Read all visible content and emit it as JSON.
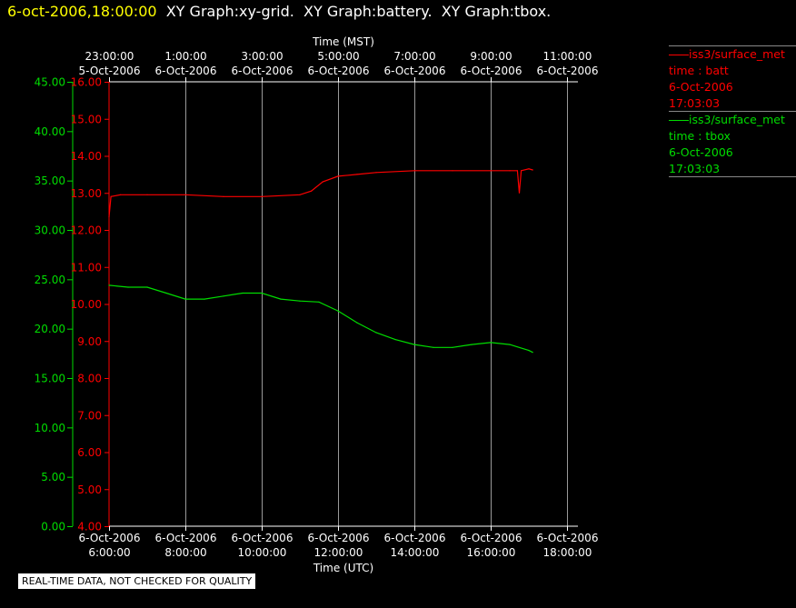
{
  "header": {
    "timestamp": "6-oct-2006,18:00:00",
    "graph_titles": "XY Graph:xy-grid.  XY Graph:battery.  XY Graph:tbox."
  },
  "footer": {
    "notice": "REAL-TIME DATA, NOT CHECKED FOR QUALITY"
  },
  "legend": [
    {
      "line1": "iss3/surface_met",
      "line2": "time : batt",
      "line3": "6-Oct-2006",
      "line4": "17:03:03",
      "color": "#ff0000"
    },
    {
      "line1": "iss3/surface_met",
      "line2": "time : tbox",
      "line3": "6-Oct-2006",
      "line4": "17:03:03",
      "color": "#00dd00"
    }
  ],
  "chart_data": {
    "type": "line",
    "xlabel": "Time (UTC)",
    "x2label": "Time (MST)",
    "xlim": [
      6,
      18
    ],
    "x_ticks_utc": [
      {
        "date": "6-Oct-2006",
        "time": "6:00:00"
      },
      {
        "date": "6-Oct-2006",
        "time": "8:00:00"
      },
      {
        "date": "6-Oct-2006",
        "time": "10:00:00"
      },
      {
        "date": "6-Oct-2006",
        "time": "12:00:00"
      },
      {
        "date": "6-Oct-2006",
        "time": "14:00:00"
      },
      {
        "date": "6-Oct-2006",
        "time": "16:00:00"
      },
      {
        "date": "6-Oct-2006",
        "time": "18:00:00"
      }
    ],
    "x_ticks_mst": [
      {
        "time": "23:00:00",
        "date": "5-Oct-2006"
      },
      {
        "time": "1:00:00",
        "date": "6-Oct-2006"
      },
      {
        "time": "3:00:00",
        "date": "6-Oct-2006"
      },
      {
        "time": "5:00:00",
        "date": "6-Oct-2006"
      },
      {
        "time": "7:00:00",
        "date": "6-Oct-2006"
      },
      {
        "time": "9:00:00",
        "date": "6-Oct-2006"
      },
      {
        "time": "11:00:00",
        "date": "6-Oct-2006"
      }
    ],
    "y_left": {
      "ylim": [
        0,
        45
      ],
      "ticks": [
        "0.00",
        "5.00",
        "10.00",
        "15.00",
        "20.00",
        "25.00",
        "30.00",
        "35.00",
        "40.00",
        "45.00"
      ],
      "color": "#00dd00"
    },
    "y_inner": {
      "ylim": [
        4,
        16
      ],
      "ticks": [
        "4.00",
        "5.00",
        "6.00",
        "7.00",
        "8.00",
        "9.00",
        "10.00",
        "11.00",
        "12.00",
        "13.00",
        "14.00",
        "15.00",
        "16.00"
      ],
      "color": "#ff0000"
    },
    "grid": "vertical",
    "series": [
      {
        "name": "time : batt",
        "axis": "inner",
        "color": "#ff0000",
        "x": [
          6.0,
          6.05,
          6.3,
          7.0,
          8.0,
          9.0,
          10.0,
          11.0,
          11.3,
          11.6,
          12.0,
          12.5,
          13.0,
          14.0,
          15.0,
          16.0,
          16.5,
          16.7,
          16.75,
          16.8,
          17.0,
          17.1
        ],
        "y": [
          12.35,
          12.9,
          12.95,
          12.95,
          12.95,
          12.9,
          12.9,
          12.95,
          13.05,
          13.3,
          13.45,
          13.5,
          13.55,
          13.6,
          13.6,
          13.6,
          13.6,
          13.6,
          13.0,
          13.6,
          13.65,
          13.62
        ]
      },
      {
        "name": "time : tbox",
        "axis": "left",
        "color": "#00dd00",
        "x": [
          6.0,
          6.5,
          7.0,
          7.5,
          8.0,
          8.5,
          9.0,
          9.5,
          10.0,
          10.5,
          11.0,
          11.5,
          12.0,
          12.5,
          13.0,
          13.5,
          14.0,
          14.5,
          15.0,
          15.5,
          16.0,
          16.5,
          17.0,
          17.1
        ],
        "y": [
          24.4,
          24.2,
          24.2,
          23.6,
          23.0,
          23.0,
          23.3,
          23.6,
          23.6,
          23.0,
          22.8,
          22.7,
          21.8,
          20.6,
          19.6,
          18.9,
          18.4,
          18.1,
          18.1,
          18.4,
          18.6,
          18.4,
          17.8,
          17.6
        ]
      }
    ]
  }
}
